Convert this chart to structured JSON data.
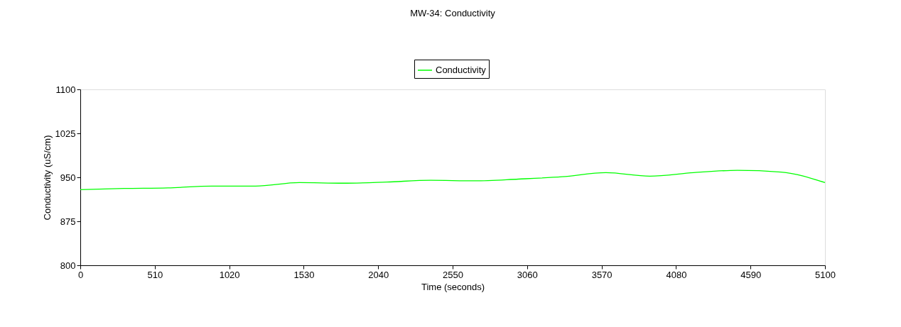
{
  "chart_data": {
    "type": "line",
    "title": "MW-34: Conductivity",
    "xlabel": "Time (seconds)",
    "ylabel": "Conductivity (uS/cm)",
    "x": [
      0,
      300,
      600,
      900,
      1200,
      1500,
      1800,
      2100,
      2400,
      2700,
      3000,
      3300,
      3600,
      3900,
      4200,
      4500,
      4800,
      5100
    ],
    "series": [
      {
        "name": "Conductivity",
        "color": "#00ff00",
        "values": [
          929,
          931,
          932,
          935,
          935,
          941,
          940,
          942,
          945,
          944,
          947,
          951,
          958,
          952,
          958,
          962,
          959,
          941
        ]
      }
    ],
    "xlim": [
      0,
      5100
    ],
    "xticks": [
      0,
      510,
      1020,
      1530,
      2040,
      2550,
      3060,
      3570,
      4080,
      4590,
      5100
    ],
    "ylim": [
      800,
      1100
    ],
    "yticks": [
      800,
      875,
      950,
      1025,
      1100
    ],
    "grid": false,
    "legend": "top",
    "marker": "none",
    "line_style": "solid"
  }
}
